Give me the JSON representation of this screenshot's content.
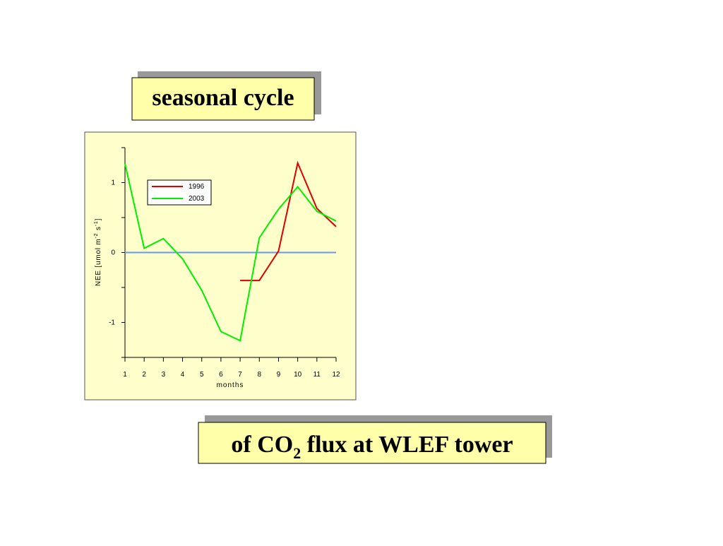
{
  "header": {
    "title": "seasonal cycle"
  },
  "footer": {
    "title": [
      "of CO",
      "2",
      " flux at WLEF tower"
    ]
  },
  "chart_data": {
    "type": "line",
    "xlabel": "months",
    "ylabel": [
      "NEE [umol m",
      "-2",
      " s",
      "-1",
      "]"
    ],
    "x": [
      1,
      2,
      3,
      4,
      5,
      6,
      7,
      8,
      9,
      10,
      11,
      12
    ],
    "series": [
      {
        "name": "1996",
        "color": "#dd0000",
        "values": [
          null,
          null,
          null,
          null,
          null,
          null,
          -0.4,
          -0.4,
          0.02,
          1.28,
          0.63,
          0.37
        ]
      },
      {
        "name": "2003",
        "color": "#00ee00",
        "values": [
          1.27,
          0.06,
          0.2,
          -0.09,
          -0.54,
          -1.13,
          -1.26,
          0.21,
          0.62,
          0.94,
          0.59,
          0.45
        ]
      }
    ],
    "xlim": [
      1,
      12
    ],
    "xticks": [
      1,
      2,
      3,
      4,
      5,
      6,
      7,
      8,
      9,
      10,
      11,
      12
    ],
    "ylim": [
      -1.5,
      1.5
    ],
    "yticks": [
      -1,
      0,
      1
    ],
    "yminorticks": [
      -1.5,
      -0.5,
      0.5,
      1.5
    ],
    "hline": {
      "value": 0,
      "color": "#6699ee"
    },
    "legend": "upper left",
    "background": "#ffffcc"
  }
}
